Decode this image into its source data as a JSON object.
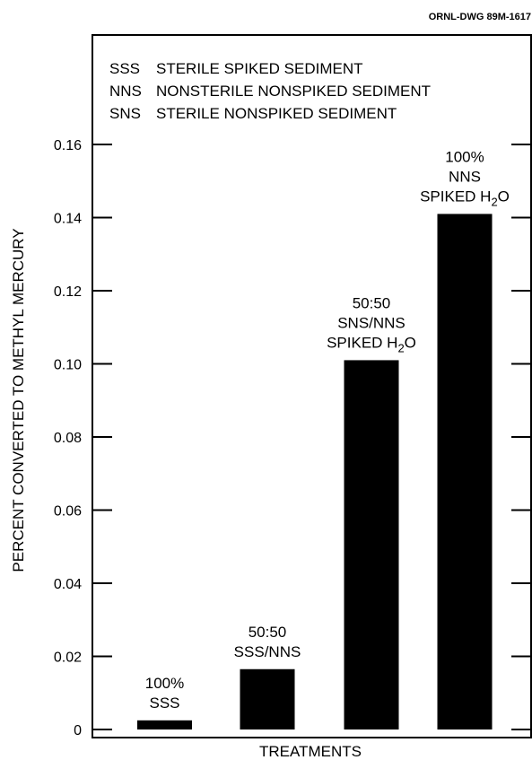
{
  "chart_data": {
    "type": "bar",
    "drawing_id": "ORNL-DWG 89M-1617",
    "ylabel": "PERCENT CONVERTED TO METHYL MERCURY",
    "xlabel": "TREATMENTS",
    "ylim": [
      0,
      0.18
    ],
    "yticks": [
      "0",
      "0.02",
      "0.04",
      "0.06",
      "0.08",
      "0.10",
      "0.12",
      "0.14",
      "0.16"
    ],
    "legend": [
      {
        "code": "SSS",
        "desc": "STERILE SPIKED SEDIMENT"
      },
      {
        "code": "NNS",
        "desc": "NONSTERILE NONSPIKED SEDIMENT"
      },
      {
        "code": "SNS",
        "desc": "STERILE NONSPIKED SEDIMENT"
      }
    ],
    "categories": [
      {
        "lines": [
          "100%",
          "SSS"
        ]
      },
      {
        "lines": [
          "50:50",
          "SSS/NNS"
        ]
      },
      {
        "lines": [
          "50:50",
          "SNS/NNS",
          "SPIKED H|2|O"
        ]
      },
      {
        "lines": [
          "100%",
          "NNS",
          "SPIKED H|2|O"
        ]
      }
    ],
    "values": [
      0.0025,
      0.0165,
      0.101,
      0.141
    ],
    "bar_color": "#000000",
    "grid": false
  }
}
